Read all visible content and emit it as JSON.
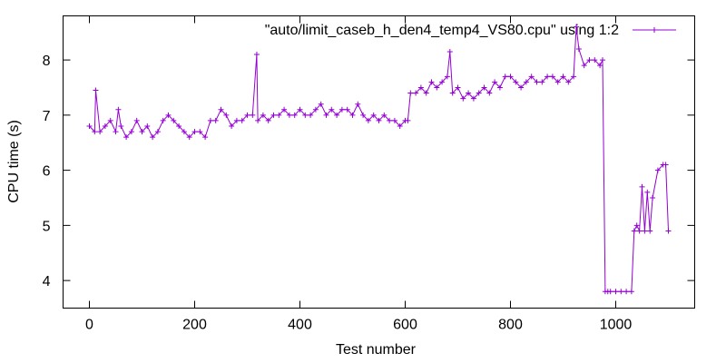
{
  "chart_data": {
    "type": "line",
    "title": "",
    "xlabel": "Test number",
    "ylabel": "CPU time (s)",
    "xlim": [
      -50,
      1150
    ],
    "ylim": [
      3.5,
      8.8
    ],
    "xticks": [
      0,
      200,
      400,
      600,
      800,
      1000
    ],
    "yticks": [
      4,
      5,
      6,
      7,
      8
    ],
    "xtick_labels": [
      "0",
      "200",
      "400",
      "600",
      "800",
      "1000"
    ],
    "ytick_labels": [
      "4",
      "5",
      "6",
      "7",
      "8"
    ],
    "grid": false,
    "legend_position": "top-right",
    "marker": "plus",
    "colors": {
      "series": "#9400d3",
      "axis": "#000000"
    },
    "series": [
      {
        "name": "\"auto/limit_caseb_h_den4_temp4_VS80.cpu\" using 1:2",
        "x": [
          0,
          10,
          12,
          20,
          30,
          40,
          50,
          55,
          60,
          70,
          80,
          90,
          100,
          110,
          120,
          130,
          140,
          150,
          160,
          170,
          180,
          190,
          200,
          210,
          220,
          230,
          240,
          250,
          260,
          270,
          280,
          290,
          300,
          310,
          318,
          320,
          330,
          340,
          350,
          360,
          370,
          380,
          390,
          400,
          410,
          420,
          430,
          440,
          450,
          460,
          470,
          480,
          490,
          500,
          510,
          520,
          530,
          540,
          550,
          560,
          570,
          580,
          590,
          600,
          605,
          610,
          620,
          630,
          640,
          650,
          660,
          670,
          680,
          685,
          690,
          700,
          710,
          720,
          730,
          740,
          750,
          760,
          770,
          780,
          790,
          800,
          810,
          820,
          830,
          840,
          850,
          860,
          870,
          880,
          890,
          900,
          910,
          920,
          925,
          930,
          940,
          950,
          960,
          970,
          975,
          980,
          985,
          990,
          1000,
          1010,
          1020,
          1030,
          1035,
          1040,
          1045,
          1050,
          1055,
          1060,
          1065,
          1070,
          1080,
          1090,
          1095,
          1100
        ],
        "y": [
          6.8,
          6.7,
          7.45,
          6.7,
          6.8,
          6.9,
          6.7,
          7.1,
          6.8,
          6.6,
          6.7,
          6.9,
          6.7,
          6.8,
          6.6,
          6.7,
          6.9,
          7.0,
          6.9,
          6.8,
          6.7,
          6.6,
          6.7,
          6.7,
          6.6,
          6.9,
          6.9,
          7.1,
          7.0,
          6.8,
          6.9,
          6.9,
          7.0,
          7.0,
          8.1,
          6.9,
          7.0,
          6.9,
          7.0,
          7.0,
          7.1,
          7.0,
          7.0,
          7.1,
          7.0,
          7.0,
          7.1,
          7.2,
          7.0,
          7.1,
          7.0,
          7.1,
          7.1,
          7.0,
          7.2,
          7.0,
          6.9,
          7.0,
          6.9,
          7.0,
          6.9,
          6.9,
          6.8,
          6.9,
          6.9,
          7.4,
          7.4,
          7.5,
          7.4,
          7.6,
          7.5,
          7.6,
          7.7,
          8.15,
          7.4,
          7.5,
          7.3,
          7.4,
          7.3,
          7.4,
          7.5,
          7.4,
          7.6,
          7.5,
          7.7,
          7.7,
          7.6,
          7.5,
          7.6,
          7.7,
          7.6,
          7.6,
          7.7,
          7.7,
          7.6,
          7.7,
          7.6,
          7.7,
          8.6,
          8.2,
          7.9,
          8.0,
          8.0,
          7.9,
          8.0,
          3.8,
          3.8,
          3.8,
          3.8,
          3.8,
          3.8,
          3.8,
          4.9,
          5.0,
          4.9,
          5.7,
          4.9,
          5.6,
          4.9,
          5.5,
          6.0,
          6.1,
          6.1,
          4.9
        ]
      }
    ]
  }
}
